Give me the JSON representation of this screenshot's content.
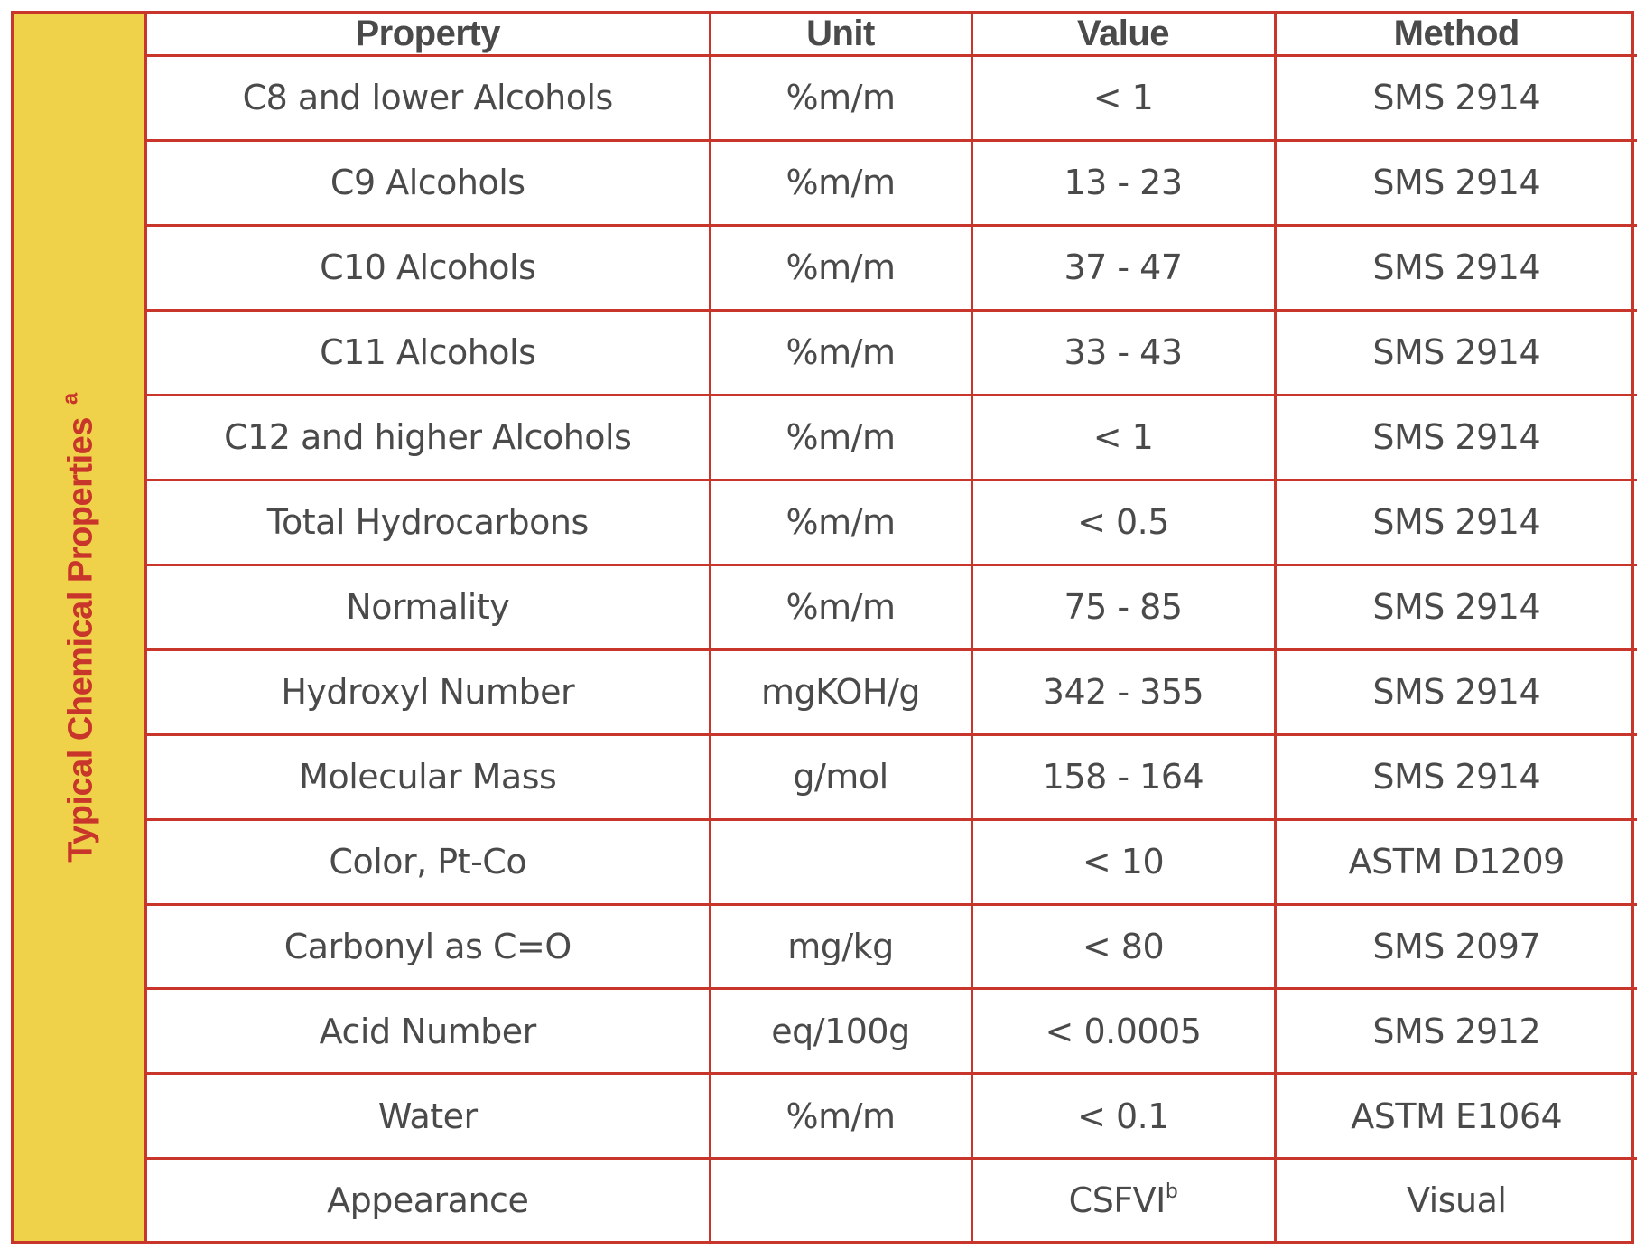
{
  "side_label": {
    "text": "Typical Chemical Properties",
    "superscript": "a"
  },
  "header": {
    "property": "Property",
    "unit": "Unit",
    "value": "Value",
    "method": "Method"
  },
  "rows": [
    {
      "property": "C8 and lower Alcohols",
      "unit": "%m/m",
      "value": "< 1",
      "value_sup": "",
      "method": "SMS 2914"
    },
    {
      "property": "C9 Alcohols",
      "unit": "%m/m",
      "value": "13 - 23",
      "value_sup": "",
      "method": "SMS 2914"
    },
    {
      "property": "C10 Alcohols",
      "unit": "%m/m",
      "value": "37 - 47",
      "value_sup": "",
      "method": "SMS 2914"
    },
    {
      "property": "C11 Alcohols",
      "unit": "%m/m",
      "value": "33 - 43",
      "value_sup": "",
      "method": "SMS 2914"
    },
    {
      "property": "C12 and higher Alcohols",
      "unit": "%m/m",
      "value": "< 1",
      "value_sup": "",
      "method": "SMS 2914"
    },
    {
      "property": "Total Hydrocarbons",
      "unit": "%m/m",
      "value": "< 0.5",
      "value_sup": "",
      "method": "SMS 2914"
    },
    {
      "property": "Normality",
      "unit": "%m/m",
      "value": "75 - 85",
      "value_sup": "",
      "method": "SMS 2914"
    },
    {
      "property": "Hydroxyl Number",
      "unit": "mgKOH/g",
      "value": "342 - 355",
      "value_sup": "",
      "method": "SMS 2914"
    },
    {
      "property": "Molecular Mass",
      "unit": "g/mol",
      "value": "158 - 164",
      "value_sup": "",
      "method": "SMS 2914"
    },
    {
      "property": "Color, Pt-Co",
      "unit": "",
      "value": "< 10",
      "value_sup": "",
      "method": "ASTM D1209"
    },
    {
      "property": "Carbonyl as C=O",
      "unit": "mg/kg",
      "value": "< 80",
      "value_sup": "",
      "method": "SMS 2097"
    },
    {
      "property": "Acid Number",
      "unit": "eq/100g",
      "value": "< 0.0005",
      "value_sup": "",
      "method": "SMS 2912"
    },
    {
      "property": "Water",
      "unit": "%m/m",
      "value": "< 0.1",
      "value_sup": "",
      "method": "ASTM E1064"
    },
    {
      "property": "Appearance",
      "unit": "",
      "value": "CSFVI",
      "value_sup": "b",
      "method": "Visual"
    }
  ],
  "colors": {
    "border": "#c8352a",
    "side_background": "#f0d24a",
    "side_text": "#c8352a",
    "cell_text": "#4a4a4a"
  }
}
